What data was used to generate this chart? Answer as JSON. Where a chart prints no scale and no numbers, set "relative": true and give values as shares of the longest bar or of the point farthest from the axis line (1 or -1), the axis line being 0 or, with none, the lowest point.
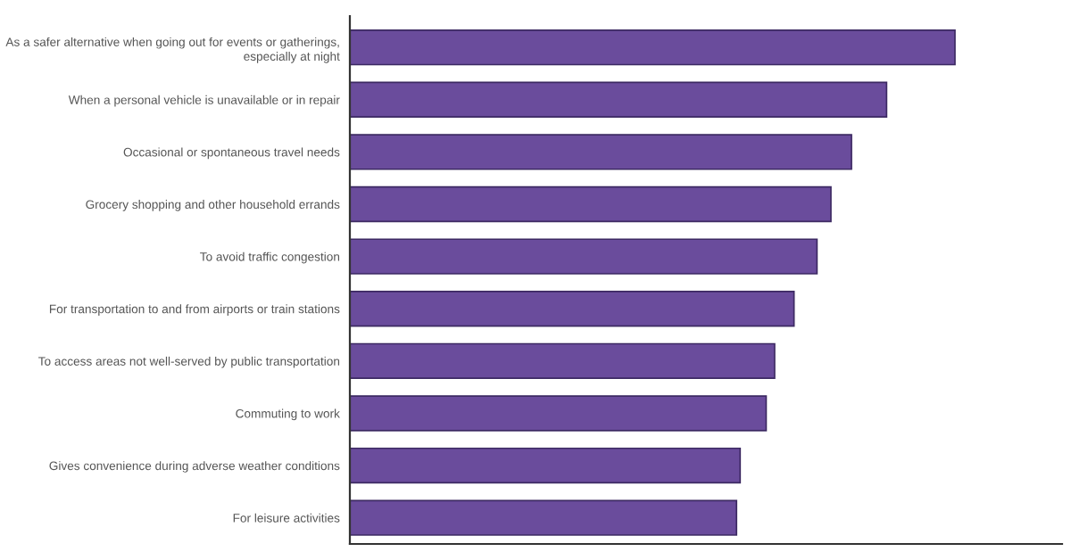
{
  "chart_data": {
    "type": "bar",
    "orientation": "horizontal",
    "relative": true,
    "categories": [
      "As a safer alternative when going out for events or gatherings,\nespecially at night",
      "When a personal vehicle is unavailable or in repair",
      "Occasional or spontaneous travel needs",
      "Grocery shopping and other household errands",
      "To avoid traffic congestion",
      "For transportation to and from airports or train stations",
      "To access areas not well-served by public transportation",
      "Commuting to work",
      "Gives convenience during adverse weather conditions",
      "For leisure activities"
    ],
    "values": [
      1,
      0.887,
      0.829,
      0.795,
      0.772,
      0.734,
      0.702,
      0.688,
      0.645,
      0.639
    ],
    "color": "#6a4c9c",
    "grid": false,
    "legend": false
  }
}
